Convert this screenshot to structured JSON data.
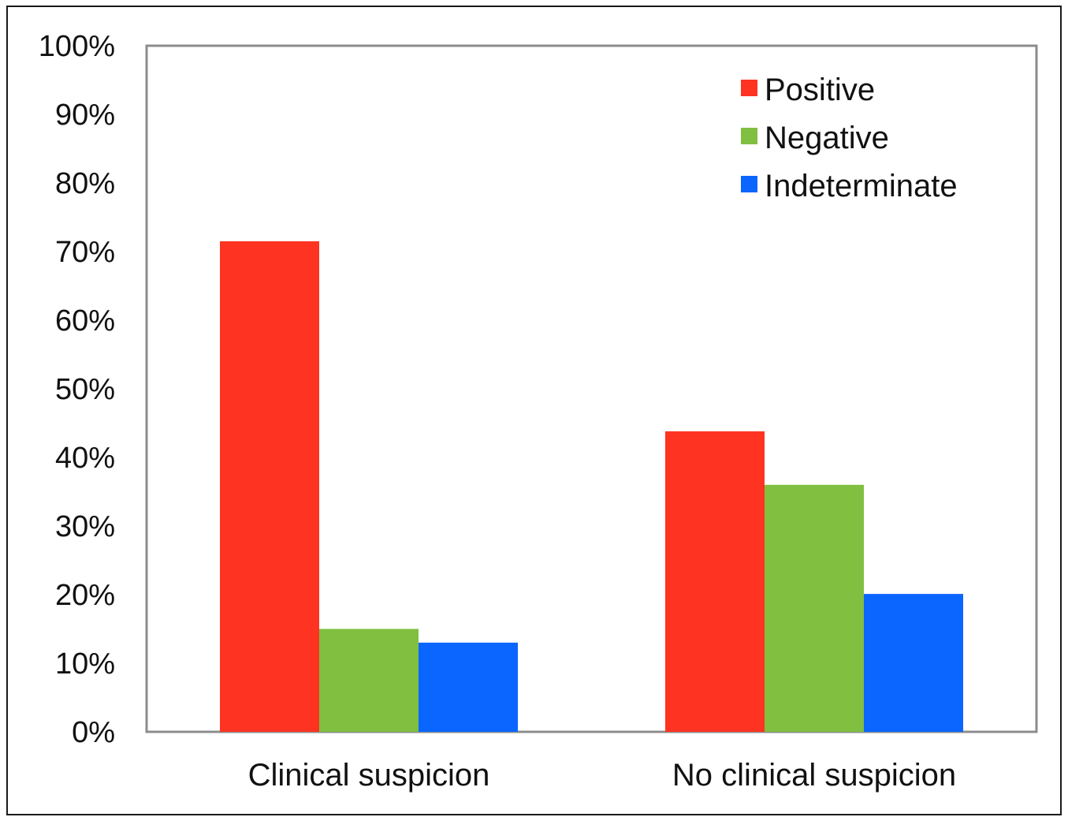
{
  "chart_data": {
    "type": "bar",
    "title": "",
    "xlabel": "",
    "ylabel": "",
    "categories": [
      "Clinical suspicion",
      "No clinical suspicion"
    ],
    "series": [
      {
        "name": "Positive",
        "values": [
          71.5,
          43.8
        ],
        "color": "#ff3322"
      },
      {
        "name": "Negative",
        "values": [
          15.0,
          36.0
        ],
        "color": "#80bf40"
      },
      {
        "name": "Indeterminate",
        "values": [
          13.0,
          20.1
        ],
        "color": "#0a66ff"
      }
    ],
    "ylim": [
      0,
      100
    ],
    "yticks": [
      0,
      10,
      20,
      30,
      40,
      50,
      60,
      70,
      80,
      90,
      100
    ],
    "ytick_labels": [
      "0%",
      "10%",
      "20%",
      "30%",
      "40%",
      "50%",
      "60%",
      "70%",
      "80%",
      "90%",
      "100%"
    ],
    "grid": false,
    "legend_position": "top-right"
  }
}
